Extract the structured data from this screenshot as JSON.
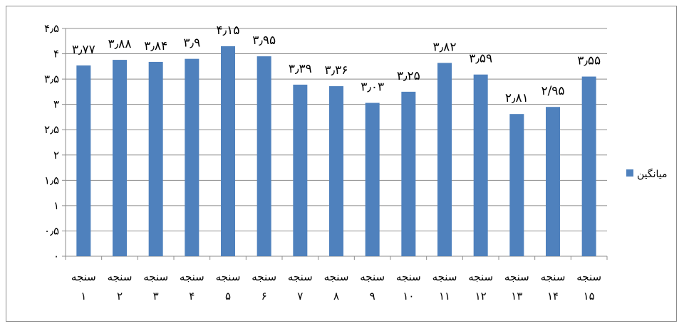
{
  "chart_data": {
    "type": "bar",
    "categories": [
      "سنجه ۱",
      "سنجه ۲",
      "سنجه ۳",
      "سنجه ۴",
      "سنجه ۵",
      "سنجه ۶",
      "سنجه ۷",
      "سنجه ۸",
      "سنجه ۹",
      "سنجه ۱۰",
      "سنجه ۱۱",
      "سنجه ۱۲",
      "سنجه ۱۳",
      "سنجه ۱۴",
      "سنجه ۱۵"
    ],
    "category_lines": [
      [
        "سنجه",
        "۱"
      ],
      [
        "سنجه",
        "۲"
      ],
      [
        "سنجه",
        "۳"
      ],
      [
        "سنجه",
        "۴"
      ],
      [
        "سنجه",
        "۵"
      ],
      [
        "سنجه",
        "۶"
      ],
      [
        "سنجه",
        "۷"
      ],
      [
        "سنجه",
        "۸"
      ],
      [
        "سنجه",
        "۹"
      ],
      [
        "سنجه",
        "۱۰"
      ],
      [
        "سنجه",
        "۱۱"
      ],
      [
        "سنجه",
        "۱۲"
      ],
      [
        "سنجه",
        "۱۳"
      ],
      [
        "سنجه",
        "۱۴"
      ],
      [
        "سنجه",
        "۱۵"
      ]
    ],
    "series": [
      {
        "name": "میانگین",
        "values": [
          3.77,
          3.88,
          3.84,
          3.9,
          4.15,
          3.95,
          3.39,
          3.36,
          3.03,
          3.25,
          3.82,
          3.59,
          2.81,
          2.95,
          3.55
        ],
        "data_labels": [
          "۳٫۷۷",
          "۳٫۸۸",
          "۳٫۸۴",
          "۳٫۹",
          "۴٫۱۵",
          "۳٫۹۵",
          "۳٫۳۹",
          "۳٫۳۶",
          "۳٫۰۳",
          "۳٫۲۵",
          "۳٫۸۲",
          "۳٫۵۹",
          "۲٫۸۱",
          "۲/۹۵",
          "۳٫۵۵"
        ]
      }
    ],
    "yticks": [
      0,
      0.5,
      1,
      1.5,
      2,
      2.5,
      3,
      3.5,
      4,
      4.5
    ],
    "ytick_labels": [
      "۰",
      "۰٫۵",
      "۱",
      "۱٫۵",
      "۲",
      "۲٫۵",
      "۳",
      "۳٫۵",
      "۴",
      "۴٫۵"
    ],
    "ylim": [
      0,
      4.5
    ],
    "grid": "horizontal",
    "legend_position": "right",
    "title": "",
    "xlabel": "",
    "ylabel": "",
    "colors": {
      "bar": "#4f81bd",
      "grid": "#8c8c8c",
      "axis": "#8c8c8c"
    }
  }
}
